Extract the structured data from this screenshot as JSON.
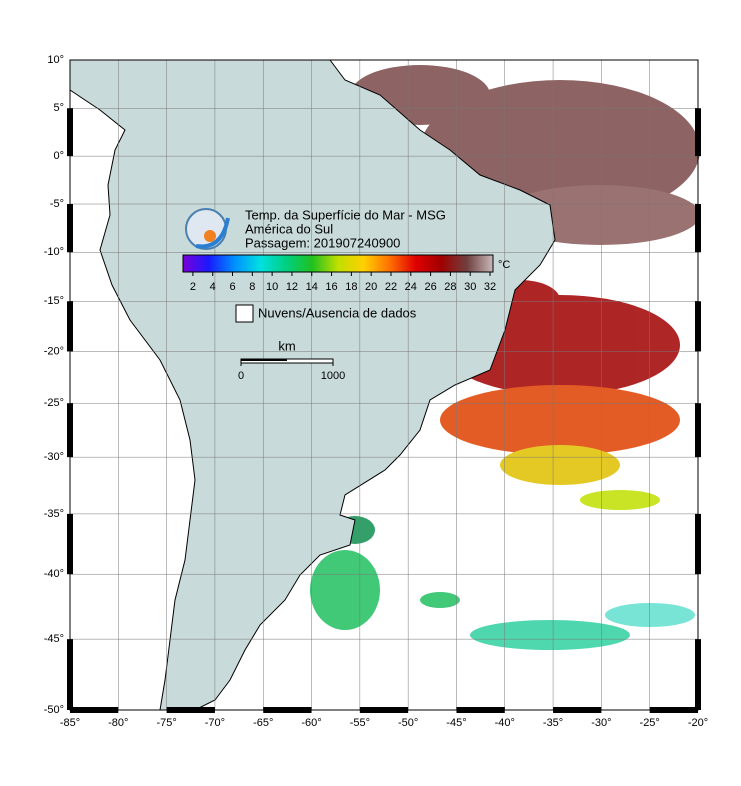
{
  "header": {
    "title": "Temp. da Superfície do Mar - MSG",
    "region": "América do Sul",
    "pass": "Passagem: 201907240900"
  },
  "colorbar": {
    "unit": "°C",
    "range": [
      1,
      32.3
    ],
    "ticks": [
      2,
      4,
      6,
      8,
      10,
      12,
      14,
      16,
      18,
      20,
      22,
      24,
      26,
      28,
      30,
      32
    ],
    "colors": [
      "#7a00d8",
      "#1a1aff",
      "#0090ff",
      "#00e0e0",
      "#00d080",
      "#20c020",
      "#c0e000",
      "#ffd000",
      "#ff7000",
      "#e00000",
      "#a00000",
      "#704040",
      "#c8b8b8"
    ]
  },
  "legend": {
    "no_data": "Nuvens/Ausencia de dados"
  },
  "scale_bar": {
    "unit": "km",
    "ticks": [
      0,
      1000
    ]
  },
  "map": {
    "xlim": [
      -85,
      -20
    ],
    "ylim": [
      -50,
      10
    ],
    "xticks": [
      {
        "value": -85,
        "label": "-85°"
      },
      {
        "value": -80,
        "label": "-80°"
      },
      {
        "value": -75,
        "label": "-75°"
      },
      {
        "value": -70,
        "label": "-70°"
      },
      {
        "value": -65,
        "label": "-65°"
      },
      {
        "value": -60,
        "label": "-60°"
      },
      {
        "value": -55,
        "label": "-55°"
      },
      {
        "value": -50,
        "label": "-50°"
      },
      {
        "value": -45,
        "label": "-45°"
      },
      {
        "value": -40,
        "label": "-40°"
      },
      {
        "value": -35,
        "label": "-35°"
      },
      {
        "value": -30,
        "label": "-30°"
      },
      {
        "value": -25,
        "label": "-25°"
      },
      {
        "value": -20,
        "label": "-20°"
      }
    ],
    "yticks": [
      {
        "value": 10,
        "label": "10°"
      },
      {
        "value": 5,
        "label": "5°"
      },
      {
        "value": 0,
        "label": "0°"
      },
      {
        "value": -5,
        "label": "-5°"
      },
      {
        "value": -10,
        "label": "-10°"
      },
      {
        "value": -15,
        "label": "-15°"
      },
      {
        "value": -20,
        "label": "-20°"
      },
      {
        "value": -25,
        "label": "-25°"
      },
      {
        "value": -30,
        "label": "-30°"
      },
      {
        "value": -35,
        "label": "-35°"
      },
      {
        "value": -40,
        "label": "-40°"
      },
      {
        "value": -45,
        "label": "-45°"
      },
      {
        "value": -50,
        "label": "-50°"
      }
    ]
  }
}
